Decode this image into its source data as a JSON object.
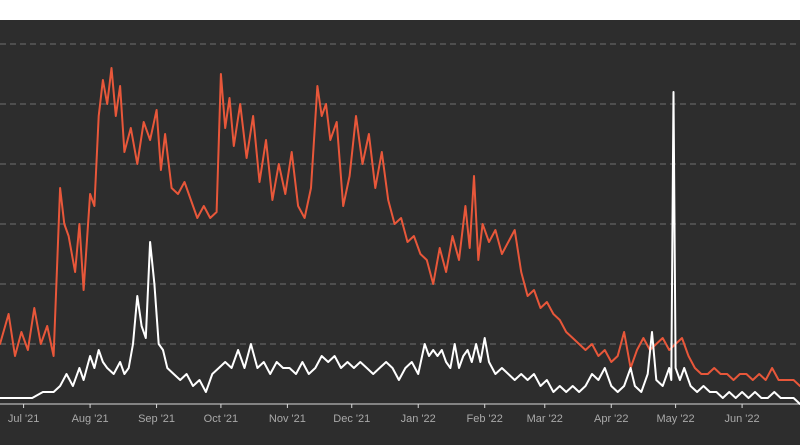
{
  "chart_data": {
    "type": "line",
    "title": "",
    "xlabel": "",
    "ylabel": "",
    "grid": true,
    "legend": "none",
    "x_range": [
      "2021-06-20",
      "2022-06-28"
    ],
    "ylim": [
      0,
      100
    ],
    "y_grid_values": [
      10,
      20,
      30,
      40,
      50,
      60
    ],
    "x_ticks": [
      {
        "date": "2021-07-01",
        "label": "Jul '21"
      },
      {
        "date": "2021-08-01",
        "label": "Aug '21"
      },
      {
        "date": "2021-09-01",
        "label": "Sep '21"
      },
      {
        "date": "2021-10-01",
        "label": "Oct '21"
      },
      {
        "date": "2021-11-01",
        "label": "Nov '21"
      },
      {
        "date": "2021-12-01",
        "label": "Dec '21"
      },
      {
        "date": "2022-01-01",
        "label": "Jan '22"
      },
      {
        "date": "2022-02-01",
        "label": "Feb '22"
      },
      {
        "date": "2022-03-01",
        "label": "Mar '22"
      },
      {
        "date": "2022-04-01",
        "label": "Apr '22"
      },
      {
        "date": "2022-05-01",
        "label": "May '22"
      },
      {
        "date": "2022-06-01",
        "label": "Jun '22"
      }
    ],
    "series": [
      {
        "color": "#e8573a",
        "points": [
          [
            "2021-06-20",
            10
          ],
          [
            "2021-06-24",
            15
          ],
          [
            "2021-06-27",
            8
          ],
          [
            "2021-06-30",
            12
          ],
          [
            "2021-07-03",
            9
          ],
          [
            "2021-07-06",
            16
          ],
          [
            "2021-07-09",
            10
          ],
          [
            "2021-07-12",
            13
          ],
          [
            "2021-07-15",
            8
          ],
          [
            "2021-07-18",
            36
          ],
          [
            "2021-07-20",
            30
          ],
          [
            "2021-07-22",
            28
          ],
          [
            "2021-07-25",
            22
          ],
          [
            "2021-07-27",
            30
          ],
          [
            "2021-07-29",
            19
          ],
          [
            "2021-08-01",
            35
          ],
          [
            "2021-08-03",
            33
          ],
          [
            "2021-08-05",
            48
          ],
          [
            "2021-08-07",
            54
          ],
          [
            "2021-08-09",
            50
          ],
          [
            "2021-08-11",
            56
          ],
          [
            "2021-08-13",
            48
          ],
          [
            "2021-08-15",
            53
          ],
          [
            "2021-08-17",
            42
          ],
          [
            "2021-08-20",
            46
          ],
          [
            "2021-08-23",
            40
          ],
          [
            "2021-08-26",
            47
          ],
          [
            "2021-08-29",
            44
          ],
          [
            "2021-09-01",
            49
          ],
          [
            "2021-09-03",
            39
          ],
          [
            "2021-09-05",
            45
          ],
          [
            "2021-09-08",
            36
          ],
          [
            "2021-09-11",
            35
          ],
          [
            "2021-09-14",
            37
          ],
          [
            "2021-09-17",
            34
          ],
          [
            "2021-09-20",
            31
          ],
          [
            "2021-09-23",
            33
          ],
          [
            "2021-09-26",
            31
          ],
          [
            "2021-09-29",
            32
          ],
          [
            "2021-10-01",
            55
          ],
          [
            "2021-10-03",
            46
          ],
          [
            "2021-10-05",
            51
          ],
          [
            "2021-10-07",
            43
          ],
          [
            "2021-10-10",
            50
          ],
          [
            "2021-10-13",
            41
          ],
          [
            "2021-10-16",
            48
          ],
          [
            "2021-10-19",
            37
          ],
          [
            "2021-10-22",
            44
          ],
          [
            "2021-10-25",
            34
          ],
          [
            "2021-10-28",
            40
          ],
          [
            "2021-10-31",
            35
          ],
          [
            "2021-11-03",
            42
          ],
          [
            "2021-11-06",
            33
          ],
          [
            "2021-11-09",
            31
          ],
          [
            "2021-11-12",
            36
          ],
          [
            "2021-11-15",
            53
          ],
          [
            "2021-11-17",
            48
          ],
          [
            "2021-11-19",
            50
          ],
          [
            "2021-11-21",
            44
          ],
          [
            "2021-11-24",
            47
          ],
          [
            "2021-11-27",
            33
          ],
          [
            "2021-11-30",
            38
          ],
          [
            "2021-12-03",
            48
          ],
          [
            "2021-12-06",
            40
          ],
          [
            "2021-12-09",
            45
          ],
          [
            "2021-12-12",
            36
          ],
          [
            "2021-12-15",
            42
          ],
          [
            "2021-12-18",
            34
          ],
          [
            "2021-12-21",
            30
          ],
          [
            "2021-12-24",
            31
          ],
          [
            "2021-12-27",
            27
          ],
          [
            "2021-12-30",
            28
          ],
          [
            "2022-01-02",
            25
          ],
          [
            "2022-01-05",
            24
          ],
          [
            "2022-01-08",
            20
          ],
          [
            "2022-01-11",
            26
          ],
          [
            "2022-01-14",
            22
          ],
          [
            "2022-01-17",
            28
          ],
          [
            "2022-01-20",
            24
          ],
          [
            "2022-01-23",
            33
          ],
          [
            "2022-01-25",
            26
          ],
          [
            "2022-01-27",
            38
          ],
          [
            "2022-01-29",
            24
          ],
          [
            "2022-01-31",
            30
          ],
          [
            "2022-02-03",
            27
          ],
          [
            "2022-02-06",
            29
          ],
          [
            "2022-02-09",
            25
          ],
          [
            "2022-02-12",
            27
          ],
          [
            "2022-02-15",
            29
          ],
          [
            "2022-02-18",
            22
          ],
          [
            "2022-02-21",
            18
          ],
          [
            "2022-02-24",
            19
          ],
          [
            "2022-02-27",
            16
          ],
          [
            "2022-03-02",
            17
          ],
          [
            "2022-03-05",
            15
          ],
          [
            "2022-03-08",
            14
          ],
          [
            "2022-03-11",
            12
          ],
          [
            "2022-03-14",
            11
          ],
          [
            "2022-03-17",
            10
          ],
          [
            "2022-03-20",
            9
          ],
          [
            "2022-03-23",
            10
          ],
          [
            "2022-03-26",
            8
          ],
          [
            "2022-03-29",
            9
          ],
          [
            "2022-04-01",
            7
          ],
          [
            "2022-04-04",
            8
          ],
          [
            "2022-04-07",
            12
          ],
          [
            "2022-04-10",
            6
          ],
          [
            "2022-04-13",
            9
          ],
          [
            "2022-04-16",
            11
          ],
          [
            "2022-04-19",
            9
          ],
          [
            "2022-04-22",
            10
          ],
          [
            "2022-04-25",
            11
          ],
          [
            "2022-04-28",
            9
          ],
          [
            "2022-05-01",
            10
          ],
          [
            "2022-05-04",
            11
          ],
          [
            "2022-05-07",
            8
          ],
          [
            "2022-05-10",
            6
          ],
          [
            "2022-05-13",
            5
          ],
          [
            "2022-05-16",
            5
          ],
          [
            "2022-05-19",
            6
          ],
          [
            "2022-05-22",
            5
          ],
          [
            "2022-05-25",
            5
          ],
          [
            "2022-05-28",
            4
          ],
          [
            "2022-05-31",
            5
          ],
          [
            "2022-06-03",
            5
          ],
          [
            "2022-06-06",
            4
          ],
          [
            "2022-06-09",
            5
          ],
          [
            "2022-06-12",
            4
          ],
          [
            "2022-06-15",
            6
          ],
          [
            "2022-06-18",
            4
          ],
          [
            "2022-06-21",
            4
          ],
          [
            "2022-06-25",
            4
          ],
          [
            "2022-06-28",
            3
          ]
        ]
      },
      {
        "color": "#ffffff",
        "points": [
          [
            "2021-06-20",
            1
          ],
          [
            "2021-06-25",
            1
          ],
          [
            "2021-06-30",
            1
          ],
          [
            "2021-07-05",
            1
          ],
          [
            "2021-07-10",
            2
          ],
          [
            "2021-07-15",
            2
          ],
          [
            "2021-07-18",
            3
          ],
          [
            "2021-07-21",
            5
          ],
          [
            "2021-07-24",
            3
          ],
          [
            "2021-07-27",
            6
          ],
          [
            "2021-07-29",
            4
          ],
          [
            "2021-08-01",
            8
          ],
          [
            "2021-08-03",
            6
          ],
          [
            "2021-08-05",
            9
          ],
          [
            "2021-08-07",
            7
          ],
          [
            "2021-08-09",
            6
          ],
          [
            "2021-08-12",
            5
          ],
          [
            "2021-08-15",
            7
          ],
          [
            "2021-08-17",
            5
          ],
          [
            "2021-08-19",
            6
          ],
          [
            "2021-08-21",
            10
          ],
          [
            "2021-08-23",
            18
          ],
          [
            "2021-08-25",
            13
          ],
          [
            "2021-08-27",
            11
          ],
          [
            "2021-08-29",
            27
          ],
          [
            "2021-08-31",
            20
          ],
          [
            "2021-09-02",
            10
          ],
          [
            "2021-09-04",
            9
          ],
          [
            "2021-09-06",
            6
          ],
          [
            "2021-09-09",
            5
          ],
          [
            "2021-09-12",
            4
          ],
          [
            "2021-09-15",
            5
          ],
          [
            "2021-09-18",
            3
          ],
          [
            "2021-09-21",
            4
          ],
          [
            "2021-09-24",
            2
          ],
          [
            "2021-09-27",
            5
          ],
          [
            "2021-09-30",
            6
          ],
          [
            "2021-10-03",
            7
          ],
          [
            "2021-10-06",
            6
          ],
          [
            "2021-10-09",
            9
          ],
          [
            "2021-10-12",
            6
          ],
          [
            "2021-10-15",
            10
          ],
          [
            "2021-10-18",
            6
          ],
          [
            "2021-10-21",
            7
          ],
          [
            "2021-10-24",
            5
          ],
          [
            "2021-10-27",
            7
          ],
          [
            "2021-10-30",
            6
          ],
          [
            "2021-11-02",
            6
          ],
          [
            "2021-11-05",
            5
          ],
          [
            "2021-11-08",
            7
          ],
          [
            "2021-11-11",
            5
          ],
          [
            "2021-11-14",
            6
          ],
          [
            "2021-11-17",
            8
          ],
          [
            "2021-11-20",
            7
          ],
          [
            "2021-11-23",
            8
          ],
          [
            "2021-11-26",
            6
          ],
          [
            "2021-11-29",
            7
          ],
          [
            "2021-12-02",
            6
          ],
          [
            "2021-12-05",
            7
          ],
          [
            "2021-12-08",
            6
          ],
          [
            "2021-12-11",
            5
          ],
          [
            "2021-12-14",
            6
          ],
          [
            "2021-12-17",
            7
          ],
          [
            "2021-12-20",
            6
          ],
          [
            "2021-12-23",
            4
          ],
          [
            "2021-12-26",
            6
          ],
          [
            "2021-12-29",
            7
          ],
          [
            "2022-01-01",
            5
          ],
          [
            "2022-01-04",
            10
          ],
          [
            "2022-01-06",
            8
          ],
          [
            "2022-01-08",
            9
          ],
          [
            "2022-01-10",
            8
          ],
          [
            "2022-01-12",
            9
          ],
          [
            "2022-01-14",
            7
          ],
          [
            "2022-01-16",
            6
          ],
          [
            "2022-01-18",
            10
          ],
          [
            "2022-01-20",
            6
          ],
          [
            "2022-01-22",
            8
          ],
          [
            "2022-01-24",
            9
          ],
          [
            "2022-01-26",
            7
          ],
          [
            "2022-01-28",
            10
          ],
          [
            "2022-01-30",
            7
          ],
          [
            "2022-02-01",
            11
          ],
          [
            "2022-02-03",
            7
          ],
          [
            "2022-02-06",
            5
          ],
          [
            "2022-02-09",
            6
          ],
          [
            "2022-02-12",
            5
          ],
          [
            "2022-02-15",
            4
          ],
          [
            "2022-02-18",
            5
          ],
          [
            "2022-02-21",
            4
          ],
          [
            "2022-02-24",
            5
          ],
          [
            "2022-02-27",
            3
          ],
          [
            "2022-03-02",
            4
          ],
          [
            "2022-03-05",
            2
          ],
          [
            "2022-03-08",
            3
          ],
          [
            "2022-03-11",
            2
          ],
          [
            "2022-03-14",
            3
          ],
          [
            "2022-03-17",
            2
          ],
          [
            "2022-03-20",
            3
          ],
          [
            "2022-03-23",
            5
          ],
          [
            "2022-03-26",
            4
          ],
          [
            "2022-03-29",
            6
          ],
          [
            "2022-04-01",
            3
          ],
          [
            "2022-04-04",
            2
          ],
          [
            "2022-04-07",
            3
          ],
          [
            "2022-04-10",
            6
          ],
          [
            "2022-04-12",
            3
          ],
          [
            "2022-04-15",
            2
          ],
          [
            "2022-04-18",
            5
          ],
          [
            "2022-04-20",
            12
          ],
          [
            "2022-04-22",
            4
          ],
          [
            "2022-04-25",
            3
          ],
          [
            "2022-04-28",
            6
          ],
          [
            "2022-04-29",
            4
          ],
          [
            "2022-04-30",
            52
          ],
          [
            "2022-05-01",
            6
          ],
          [
            "2022-05-03",
            4
          ],
          [
            "2022-05-05",
            6
          ],
          [
            "2022-05-08",
            3
          ],
          [
            "2022-05-11",
            2
          ],
          [
            "2022-05-14",
            3
          ],
          [
            "2022-05-17",
            2
          ],
          [
            "2022-05-20",
            2
          ],
          [
            "2022-05-23",
            1
          ],
          [
            "2022-05-26",
            2
          ],
          [
            "2022-05-29",
            1
          ],
          [
            "2022-06-01",
            2
          ],
          [
            "2022-06-04",
            1
          ],
          [
            "2022-06-07",
            2
          ],
          [
            "2022-06-10",
            1
          ],
          [
            "2022-06-13",
            1
          ],
          [
            "2022-06-16",
            2
          ],
          [
            "2022-06-19",
            1
          ],
          [
            "2022-06-22",
            1
          ],
          [
            "2022-06-25",
            1
          ],
          [
            "2022-06-28",
            0
          ]
        ]
      }
    ]
  }
}
